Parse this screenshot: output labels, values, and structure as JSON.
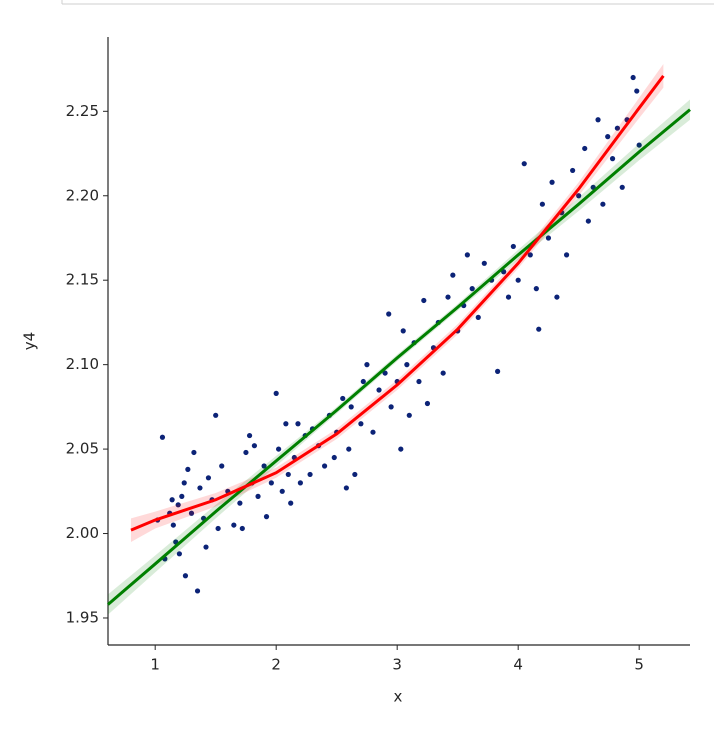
{
  "chart_data": {
    "type": "scatter",
    "xlabel": "x",
    "ylabel": "y4",
    "xlim": [
      0.61,
      5.42
    ],
    "ylim": [
      1.934,
      2.294
    ],
    "xticks": [
      1,
      2,
      3,
      4,
      5
    ],
    "yticks": [
      1.95,
      {
        "value": 2.0,
        "label": "2.00"
      },
      2.05,
      {
        "value": 2.1,
        "label": "2.10"
      },
      2.15,
      {
        "value": 2.2,
        "label": "2.20"
      },
      2.25
    ],
    "points": {
      "color": "#0c2377",
      "x": [
        1.02,
        1.06,
        1.08,
        1.12,
        1.14,
        1.15,
        1.17,
        1.19,
        1.2,
        1.22,
        1.24,
        1.25,
        1.27,
        1.3,
        1.32,
        1.35,
        1.37,
        1.4,
        1.42,
        1.44,
        1.47,
        1.5,
        1.52,
        1.55,
        1.6,
        1.65,
        1.7,
        1.72,
        1.75,
        1.78,
        1.8,
        1.82,
        1.85,
        1.9,
        1.92,
        1.96,
        2.0,
        2.02,
        2.05,
        2.08,
        2.1,
        2.12,
        2.15,
        2.18,
        2.2,
        2.24,
        2.28,
        2.3,
        2.35,
        2.4,
        2.44,
        2.48,
        2.5,
        2.55,
        2.58,
        2.6,
        2.62,
        2.65,
        2.7,
        2.72,
        2.75,
        2.8,
        2.85,
        2.9,
        2.93,
        2.95,
        3.0,
        3.03,
        3.05,
        3.08,
        3.1,
        3.14,
        3.18,
        3.22,
        3.25,
        3.3,
        3.34,
        3.38,
        3.42,
        3.46,
        3.5,
        3.55,
        3.58,
        3.62,
        3.67,
        3.72,
        3.78,
        3.83,
        3.88,
        3.92,
        3.96,
        4.0,
        4.05,
        4.1,
        4.15,
        4.17,
        4.2,
        4.25,
        4.28,
        4.32,
        4.36,
        4.4,
        4.45,
        4.5,
        4.55,
        4.58,
        4.62,
        4.66,
        4.7,
        4.74,
        4.78,
        4.82,
        4.86,
        4.9,
        4.95,
        4.98,
        5.0
      ],
      "values": [
        2.008,
        2.057,
        1.985,
        2.012,
        2.02,
        2.005,
        1.995,
        2.017,
        1.988,
        2.022,
        2.03,
        1.975,
        2.038,
        2.012,
        2.048,
        1.966,
        2.027,
        2.009,
        1.992,
        2.033,
        2.02,
        2.07,
        2.003,
        2.04,
        2.025,
        2.005,
        2.018,
        2.003,
        2.048,
        2.058,
        2.03,
        2.052,
        2.022,
        2.04,
        2.01,
        2.03,
        2.083,
        2.05,
        2.025,
        2.065,
        2.035,
        2.018,
        2.045,
        2.065,
        2.03,
        2.058,
        2.035,
        2.062,
        2.052,
        2.04,
        2.07,
        2.045,
        2.06,
        2.08,
        2.027,
        2.05,
        2.075,
        2.035,
        2.065,
        2.09,
        2.1,
        2.06,
        2.085,
        2.095,
        2.13,
        2.075,
        2.09,
        2.05,
        2.12,
        2.1,
        2.07,
        2.113,
        2.09,
        2.138,
        2.077,
        2.11,
        2.125,
        2.095,
        2.14,
        2.153,
        2.12,
        2.135,
        2.165,
        2.145,
        2.128,
        2.16,
        2.15,
        2.096,
        2.155,
        2.14,
        2.17,
        2.15,
        2.219,
        2.165,
        2.145,
        2.121,
        2.195,
        2.175,
        2.208,
        2.14,
        2.19,
        2.165,
        2.215,
        2.2,
        2.228,
        2.185,
        2.205,
        2.245,
        2.195,
        2.235,
        2.222,
        2.24,
        2.205,
        2.245,
        2.27,
        2.262,
        2.23
      ]
    },
    "fits": [
      {
        "color": "#008000",
        "x": [
          0.61,
          1,
          1.5,
          2,
          2.5,
          3,
          3.5,
          4,
          4.5,
          5,
          5.42
        ],
        "values": [
          1.958,
          1.982,
          2.013,
          2.043,
          2.073,
          2.104,
          2.134,
          2.165,
          2.195,
          2.226,
          2.251
        ],
        "lower": [
          1.952,
          1.977,
          2.009,
          2.04,
          2.071,
          2.102,
          2.132,
          2.162,
          2.191,
          2.221,
          2.245
        ],
        "upper": [
          1.964,
          1.987,
          2.017,
          2.046,
          2.075,
          2.106,
          2.136,
          2.168,
          2.199,
          2.231,
          2.257
        ]
      },
      {
        "color": "#ff0000",
        "x": [
          0.8,
          1,
          1.5,
          2,
          2.5,
          3,
          3.5,
          4,
          4.5,
          5,
          5.2
        ],
        "values": [
          2.002,
          2.008,
          2.02,
          2.036,
          2.059,
          2.088,
          2.121,
          2.16,
          2.204,
          2.252,
          2.271
        ],
        "lower": [
          1.995,
          2.003,
          2.016,
          2.033,
          2.056,
          2.085,
          2.118,
          2.157,
          2.2,
          2.246,
          2.264
        ],
        "upper": [
          2.009,
          2.013,
          2.024,
          2.039,
          2.062,
          2.091,
          2.124,
          2.163,
          2.208,
          2.258,
          2.278
        ]
      }
    ]
  }
}
